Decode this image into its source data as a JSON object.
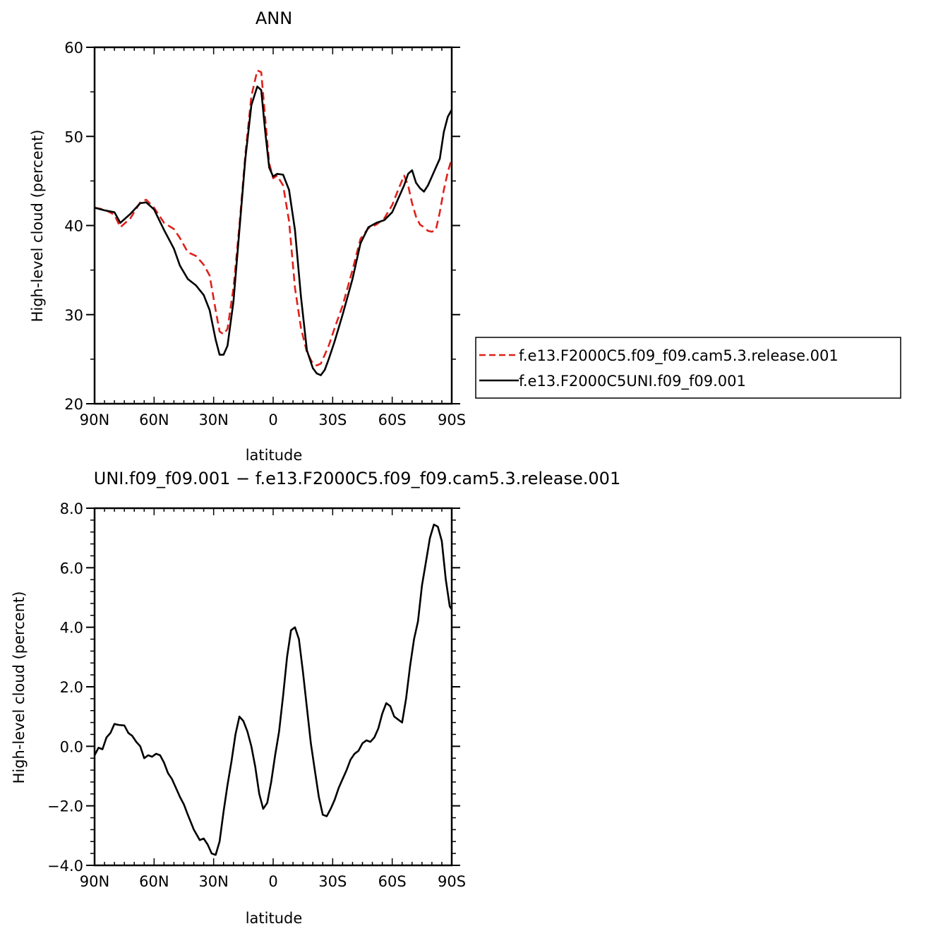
{
  "chart_data": [
    {
      "type": "line",
      "title": "ANN",
      "xlabel": "latitude",
      "ylabel": "High-level cloud (percent)",
      "x_tick_labels": [
        "90N",
        "60N",
        "30N",
        "0",
        "30S",
        "60S",
        "90S"
      ],
      "x_tick_values": [
        90,
        60,
        30,
        0,
        -30,
        -60,
        -90
      ],
      "y_tick_labels": [
        "20",
        "30",
        "40",
        "50",
        "60"
      ],
      "xlim": [
        90,
        -90
      ],
      "ylim": [
        20,
        60
      ],
      "grid": false,
      "legend_position": "right",
      "series": [
        {
          "name": "f.e13.F2000C5.f09_f09.cam5.3.release.001",
          "color": "#e0201a",
          "dash": "dashed",
          "x": [
            90,
            85,
            80,
            77,
            72,
            67,
            64,
            60,
            55,
            50,
            47,
            43,
            39,
            35,
            32,
            29,
            27,
            25,
            23,
            20,
            17,
            14,
            11,
            8,
            6,
            4,
            2,
            0,
            -2,
            -5,
            -8,
            -11,
            -14,
            -17,
            -20,
            -22,
            -24,
            -26,
            -28,
            -31,
            -35,
            -40,
            -44,
            -48,
            -52,
            -56,
            -60,
            -63,
            -66,
            -68,
            -70,
            -72,
            -74,
            -76,
            -78,
            -80,
            -82,
            -84,
            -86,
            -88,
            -90
          ],
          "values": [
            42.0,
            41.8,
            41.2,
            39.8,
            40.8,
            42.6,
            42.9,
            42.0,
            40.3,
            39.6,
            38.6,
            37.0,
            36.6,
            35.6,
            34.4,
            30.5,
            28.1,
            27.8,
            28.4,
            33.0,
            40.0,
            48.0,
            54.5,
            57.4,
            57.2,
            52.0,
            47.0,
            45.3,
            45.6,
            44.5,
            40.5,
            33.0,
            28.5,
            25.8,
            24.5,
            24.3,
            24.5,
            25.5,
            26.5,
            28.5,
            31.0,
            35.0,
            38.5,
            39.7,
            40.1,
            40.8,
            42.3,
            44.0,
            45.6,
            44.5,
            42.5,
            41.0,
            40.1,
            39.8,
            39.4,
            39.3,
            39.5,
            41.5,
            44.0,
            46.0,
            47.5
          ]
        },
        {
          "name": "f.e13.F2000C5UNI.f09_f09.001",
          "color": "#000000",
          "dash": "solid",
          "x": [
            90,
            85,
            80,
            77,
            72,
            67,
            64,
            60,
            55,
            50,
            47,
            43,
            39,
            35,
            32,
            29,
            27,
            25,
            23,
            20,
            17,
            14,
            11,
            8,
            6,
            4,
            2,
            0,
            -2,
            -5,
            -8,
            -11,
            -14,
            -17,
            -20,
            -22,
            -24,
            -26,
            -28,
            -31,
            -35,
            -40,
            -44,
            -48,
            -52,
            -56,
            -60,
            -63,
            -66,
            -68,
            -70,
            -72,
            -74,
            -76,
            -78,
            -80,
            -82,
            -84,
            -86,
            -88,
            -90
          ],
          "values": [
            42.0,
            41.7,
            41.5,
            40.3,
            41.3,
            42.5,
            42.6,
            41.8,
            39.5,
            37.4,
            35.5,
            34.0,
            33.3,
            32.2,
            30.5,
            27.2,
            25.5,
            25.5,
            26.5,
            31.5,
            39.5,
            47.5,
            53.5,
            55.6,
            55.2,
            50.5,
            46.5,
            45.5,
            45.8,
            45.7,
            44.0,
            39.5,
            32.0,
            26.0,
            24.0,
            23.4,
            23.2,
            23.8,
            25.0,
            27.0,
            30.0,
            34.0,
            38.0,
            39.8,
            40.3,
            40.6,
            41.5,
            43.0,
            44.5,
            45.8,
            46.2,
            44.8,
            44.2,
            43.8,
            44.5,
            45.5,
            46.5,
            47.5,
            50.5,
            52.2,
            53.0
          ]
        }
      ]
    },
    {
      "type": "line",
      "title": "UNI.f09_f09.001 − f.e13.F2000C5.f09_f09.cam5.3.release.001",
      "xlabel": "latitude",
      "ylabel": "High-level cloud (percent)",
      "x_tick_labels": [
        "90N",
        "60N",
        "30N",
        "0",
        "30S",
        "60S",
        "90S"
      ],
      "x_tick_values": [
        90,
        60,
        30,
        0,
        -30,
        -60,
        -90
      ],
      "y_tick_labels": [
        "−4.0",
        "−2.0",
        "0.0",
        "2.0",
        "4.0",
        "6.0",
        "8.0"
      ],
      "xlim": [
        90,
        -90
      ],
      "ylim": [
        -4,
        8
      ],
      "grid": false,
      "series": [
        {
          "color": "#000000",
          "dash": "solid",
          "x": [
            90,
            88,
            86,
            84,
            82,
            80,
            78,
            75,
            73,
            71,
            69,
            67,
            65,
            63,
            61,
            59,
            57,
            55,
            53,
            51,
            49,
            47,
            45,
            43,
            40,
            37,
            35,
            33,
            31,
            29,
            27,
            25,
            23,
            21,
            19,
            17,
            15,
            13,
            11,
            9,
            7,
            5,
            3,
            1,
            -1,
            -3,
            -5,
            -7,
            -9,
            -11,
            -13,
            -15,
            -17,
            -19,
            -21,
            -23,
            -25,
            -27,
            -29,
            -31,
            -33,
            -35,
            -37,
            -39,
            -41,
            -43,
            -45,
            -47,
            -49,
            -51,
            -53,
            -55,
            -57,
            -59,
            -61,
            -63,
            -65,
            -67,
            -69,
            -71,
            -73,
            -75,
            -77,
            -79,
            -81,
            -83,
            -85,
            -87,
            -89,
            -90
          ],
          "values": [
            -0.3,
            -0.05,
            -0.1,
            0.3,
            0.45,
            0.75,
            0.72,
            0.7,
            0.45,
            0.35,
            0.15,
            0.0,
            -0.4,
            -0.3,
            -0.35,
            -0.25,
            -0.3,
            -0.55,
            -0.9,
            -1.1,
            -1.4,
            -1.7,
            -1.95,
            -2.3,
            -2.8,
            -3.15,
            -3.1,
            -3.3,
            -3.6,
            -3.65,
            -3.2,
            -2.2,
            -1.3,
            -0.5,
            0.4,
            1.0,
            0.85,
            0.5,
            0.0,
            -0.7,
            -1.6,
            -2.1,
            -1.9,
            -1.2,
            -0.3,
            0.5,
            1.7,
            3.0,
            3.9,
            4.0,
            3.6,
            2.5,
            1.3,
            0.1,
            -0.8,
            -1.7,
            -2.3,
            -2.35,
            -2.1,
            -1.8,
            -1.4,
            -1.1,
            -0.8,
            -0.45,
            -0.25,
            -0.15,
            0.1,
            0.2,
            0.15,
            0.3,
            0.6,
            1.1,
            1.45,
            1.35,
            1.0,
            0.9,
            0.8,
            1.6,
            2.7,
            3.6,
            4.2,
            5.4,
            6.2,
            7.0,
            7.45,
            7.38,
            6.9,
            5.6,
            4.7,
            4.6
          ]
        }
      ]
    }
  ]
}
